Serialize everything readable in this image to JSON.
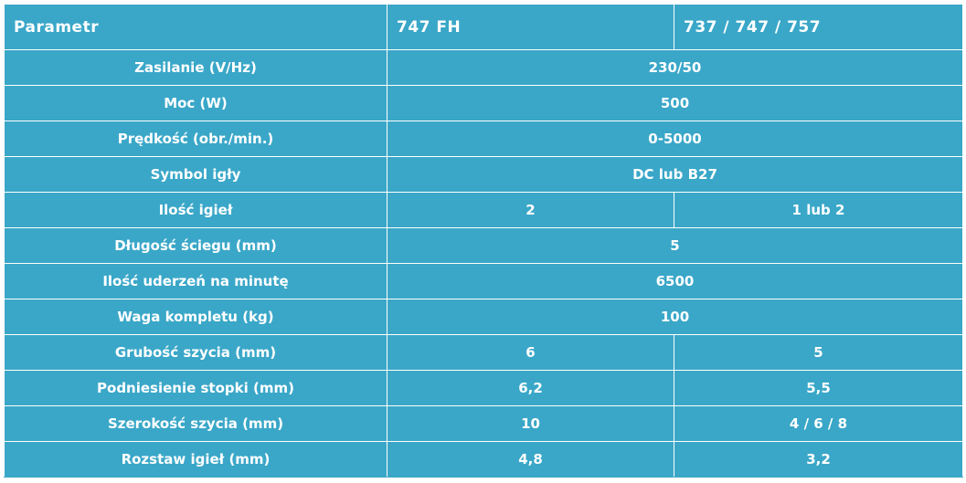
{
  "header": {
    "param": "Parametr",
    "model_a": "747 FH",
    "model_b": "737 / 747 / 757"
  },
  "rows": [
    {
      "label": "Zasilanie (V/Hz)",
      "value": "230/50"
    },
    {
      "label": "Moc (W)",
      "value": "500"
    },
    {
      "label": "Prędkość (obr./min.)",
      "value": "0-5000"
    },
    {
      "label": "Symbol igły",
      "value": "DC lub B27"
    },
    {
      "label": "Ilość igieł",
      "a": "2",
      "b": "1 lub 2"
    },
    {
      "label": "Długość ściegu (mm)",
      "value": "5"
    },
    {
      "label": "Ilość uderzeń na minutę",
      "value": "6500"
    },
    {
      "label": "Waga kompletu (kg)",
      "value": "100"
    },
    {
      "label": "Grubość szycia (mm)",
      "a": "6",
      "b": "5"
    },
    {
      "label": "Podniesienie stopki (mm)",
      "a": "6,2",
      "b": "5,5"
    },
    {
      "label": "Szerokość szycia (mm)",
      "a": "10",
      "b": "4 / 6 / 8"
    },
    {
      "label": "Rozstaw igieł (mm)",
      "a": "4,8",
      "b": "3,2"
    }
  ]
}
